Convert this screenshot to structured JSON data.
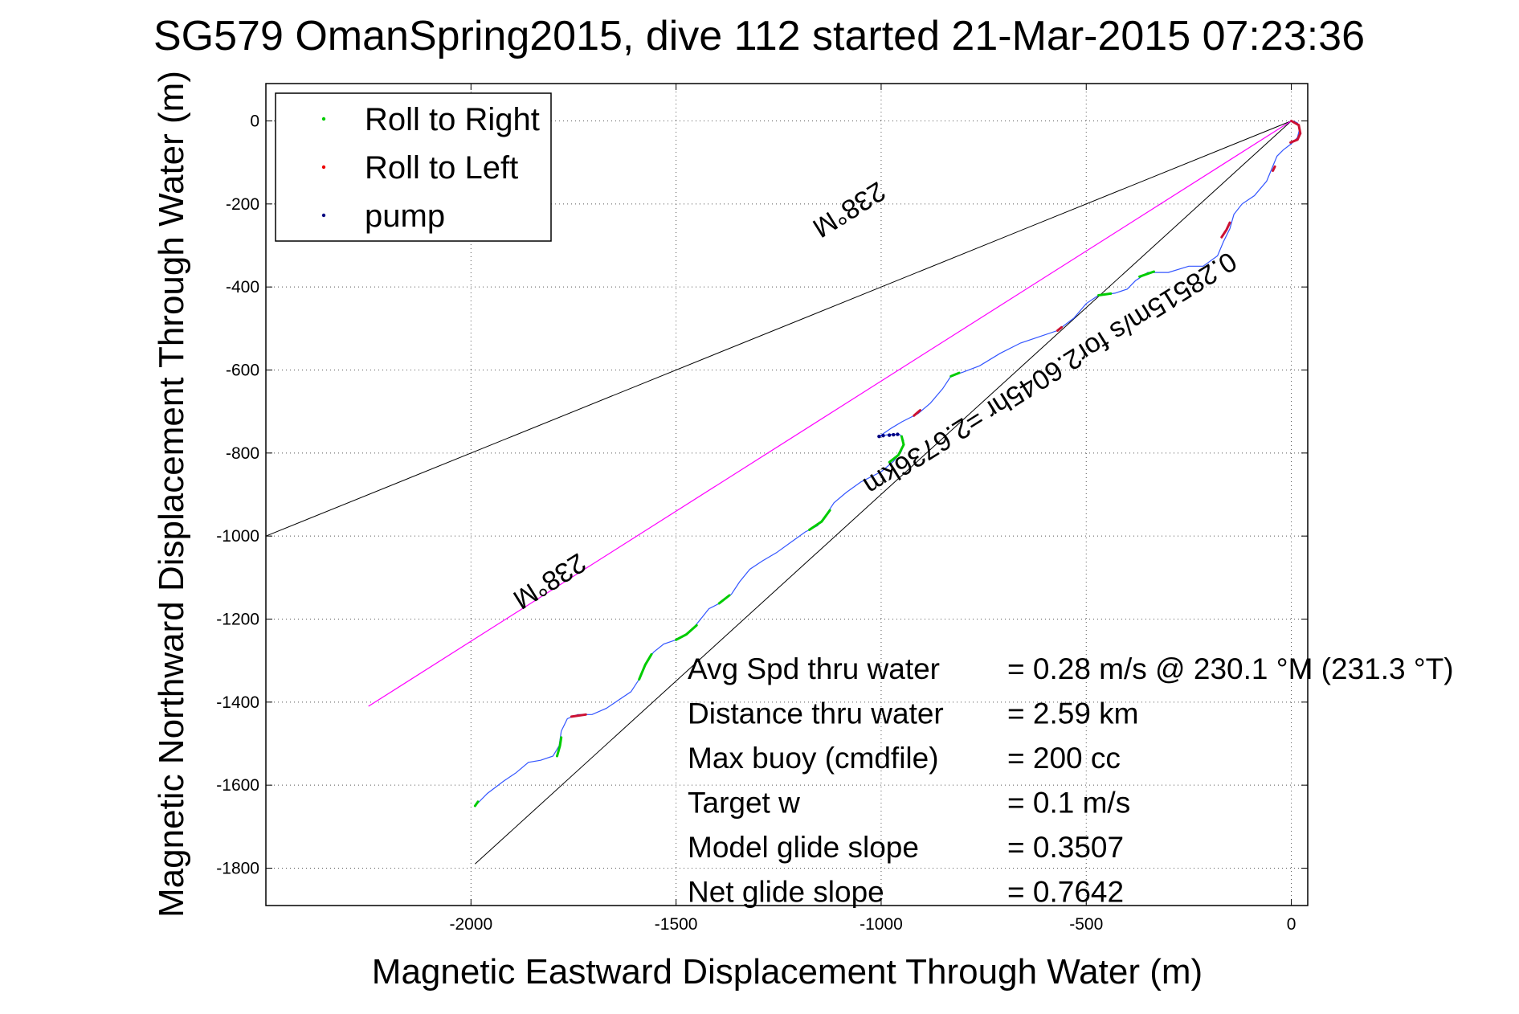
{
  "chart_data": {
    "type": "line",
    "title": "SG579 OmanSpring2015, dive 112 started 21-Mar-2015 07:23:36",
    "xlabel": "Magnetic Eastward Displacement Through Water (m)",
    "ylabel": "Magnetic Northward Displacement Through Water (m)",
    "xlim": [
      -2500,
      40
    ],
    "ylim": [
      -1890,
      90
    ],
    "xticks": [
      -2000,
      -1500,
      -1000,
      -500,
      0
    ],
    "xtick_labels": [
      "-2000",
      "-1500",
      "-1000",
      "-500",
      "0"
    ],
    "yticks": [
      0,
      -200,
      -400,
      -600,
      -800,
      -1000,
      -1200,
      -1400,
      -1600,
      -1800
    ],
    "ytick_labels": [
      "0",
      "-200",
      "-400",
      "-600",
      "-800",
      "-1000",
      "-1200",
      "-1400",
      "-1600",
      "-1800"
    ],
    "grid": true,
    "legend_location": "top-left",
    "legend": [
      {
        "label": "Roll to Right",
        "color": "#00cc00"
      },
      {
        "label": "Roll to Left",
        "color": "#ee0000"
      },
      {
        "label": "pump",
        "color": "#000080"
      }
    ],
    "colors": {
      "track": "#3355ff",
      "roll_right": "#00cc00",
      "roll_left": "#cc1133",
      "pump": "#000080",
      "current_line": "#ff00ff",
      "wedge": "#000000"
    },
    "track": [
      [
        -1990,
        -1650
      ],
      [
        -1960,
        -1620
      ],
      [
        -1920,
        -1590
      ],
      [
        -1890,
        -1570
      ],
      [
        -1860,
        -1545
      ],
      [
        -1830,
        -1540
      ],
      [
        -1800,
        -1530
      ],
      [
        -1785,
        -1505
      ],
      [
        -1780,
        -1470
      ],
      [
        -1765,
        -1440
      ],
      [
        -1740,
        -1430
      ],
      [
        -1705,
        -1430
      ],
      [
        -1670,
        -1415
      ],
      [
        -1640,
        -1395
      ],
      [
        -1610,
        -1375
      ],
      [
        -1590,
        -1345
      ],
      [
        -1575,
        -1310
      ],
      [
        -1555,
        -1280
      ],
      [
        -1530,
        -1260
      ],
      [
        -1500,
        -1250
      ],
      [
        -1465,
        -1230
      ],
      [
        -1440,
        -1200
      ],
      [
        -1420,
        -1175
      ],
      [
        -1390,
        -1160
      ],
      [
        -1365,
        -1140
      ],
      [
        -1345,
        -1110
      ],
      [
        -1320,
        -1080
      ],
      [
        -1290,
        -1060
      ],
      [
        -1255,
        -1040
      ],
      [
        -1220,
        -1015
      ],
      [
        -1185,
        -990
      ],
      [
        -1155,
        -975
      ],
      [
        -1135,
        -950
      ],
      [
        -1115,
        -920
      ],
      [
        -1085,
        -895
      ],
      [
        -1050,
        -870
      ],
      [
        -1000,
        -845
      ],
      [
        -970,
        -820
      ],
      [
        -950,
        -795
      ],
      [
        -945,
        -770
      ],
      [
        -955,
        -755
      ],
      [
        -980,
        -755
      ],
      [
        -1005,
        -760
      ],
      [
        -975,
        -740
      ],
      [
        -950,
        -725
      ],
      [
        -910,
        -705
      ],
      [
        -880,
        -680
      ],
      [
        -850,
        -645
      ],
      [
        -830,
        -615
      ],
      [
        -800,
        -605
      ],
      [
        -760,
        -590
      ],
      [
        -710,
        -560
      ],
      [
        -660,
        -535
      ],
      [
        -615,
        -520
      ],
      [
        -570,
        -505
      ],
      [
        -530,
        -475
      ],
      [
        -500,
        -440
      ],
      [
        -470,
        -420
      ],
      [
        -430,
        -415
      ],
      [
        -400,
        -405
      ],
      [
        -380,
        -385
      ],
      [
        -350,
        -365
      ],
      [
        -300,
        -365
      ],
      [
        -250,
        -350
      ],
      [
        -215,
        -350
      ],
      [
        -180,
        -325
      ],
      [
        -165,
        -290
      ],
      [
        -150,
        -260
      ],
      [
        -140,
        -225
      ],
      [
        -120,
        -200
      ],
      [
        -90,
        -180
      ],
      [
        -60,
        -145
      ],
      [
        -35,
        -85
      ],
      [
        -20,
        -70
      ],
      [
        0,
        -55
      ],
      [
        15,
        -40
      ],
      [
        20,
        -20
      ],
      [
        15,
        -5
      ],
      [
        5,
        0
      ]
    ],
    "roll_right_segments": [
      [
        [
          -1990,
          -1650
        ],
        [
          -1983,
          -1640
        ]
      ],
      [
        [
          -1790,
          -1530
        ],
        [
          -1783,
          -1505
        ],
        [
          -1780,
          -1485
        ]
      ],
      [
        [
          -1590,
          -1345
        ],
        [
          -1575,
          -1310
        ],
        [
          -1560,
          -1285
        ]
      ],
      [
        [
          -1500,
          -1250
        ],
        [
          -1475,
          -1237
        ],
        [
          -1450,
          -1215
        ]
      ],
      [
        [
          -1395,
          -1162
        ],
        [
          -1370,
          -1143
        ]
      ],
      [
        [
          -1175,
          -985
        ],
        [
          -1145,
          -965
        ],
        [
          -1125,
          -938
        ]
      ],
      [
        [
          -980,
          -822
        ],
        [
          -958,
          -805
        ],
        [
          -945,
          -780
        ],
        [
          -950,
          -760
        ]
      ],
      [
        [
          -830,
          -615
        ],
        [
          -810,
          -607
        ]
      ],
      [
        [
          -470,
          -420
        ],
        [
          -440,
          -416
        ]
      ],
      [
        [
          -370,
          -375
        ],
        [
          -335,
          -363
        ]
      ]
    ],
    "roll_left_segments": [
      [
        [
          -1755,
          -1435
        ],
        [
          -1720,
          -1430
        ]
      ],
      [
        [
          -920,
          -710
        ],
        [
          -905,
          -697
        ]
      ],
      [
        [
          -570,
          -505
        ],
        [
          -560,
          -497
        ]
      ],
      [
        [
          -45,
          -120
        ],
        [
          -40,
          -110
        ]
      ],
      [
        [
          -170,
          -280
        ],
        [
          -158,
          -262
        ],
        [
          -150,
          -245
        ]
      ],
      [
        [
          0,
          0
        ],
        [
          18,
          -10
        ],
        [
          22,
          -30
        ],
        [
          15,
          -45
        ],
        [
          -2,
          -52
        ]
      ]
    ],
    "pump_points": [
      [
        -1005,
        -760
      ],
      [
        -995,
        -758
      ],
      [
        -980,
        -757
      ],
      [
        -970,
        -756
      ],
      [
        -960,
        -755
      ]
    ],
    "current_line": [
      [
        0,
        0
      ],
      [
        -2250,
        -1410
      ]
    ],
    "wedge_lines": [
      [
        [
          0,
          0
        ],
        [
          -2500,
          -1000
        ]
      ],
      [
        [
          0,
          0
        ],
        [
          -1990,
          -1790
        ]
      ]
    ],
    "annotations": [
      {
        "text": "238°M",
        "x": -1090,
        "y": -195,
        "angle": 148
      },
      {
        "text": "0.28515m/s for2.6045hr =2.6736km",
        "x": -600,
        "y": -590,
        "angle": 148
      },
      {
        "text": "238°M",
        "x": -1820,
        "y": -1090,
        "angle": 148
      }
    ],
    "notes": [
      {
        "label": "Avg Spd thru water",
        "value": "=  0.28 m/s @ 230.1 °M (231.3 °T)"
      },
      {
        "label": "Distance thru water",
        "value": "=  2.59 km"
      },
      {
        "label": "Max buoy (cmdfile)",
        "value": "= 200 cc"
      },
      {
        "label": "Target w",
        "value": "= 0.1 m/s"
      },
      {
        "label": "Model glide slope",
        "value": "= 0.3507"
      },
      {
        "label": "Net glide slope",
        "value": "= 0.7642"
      }
    ]
  }
}
